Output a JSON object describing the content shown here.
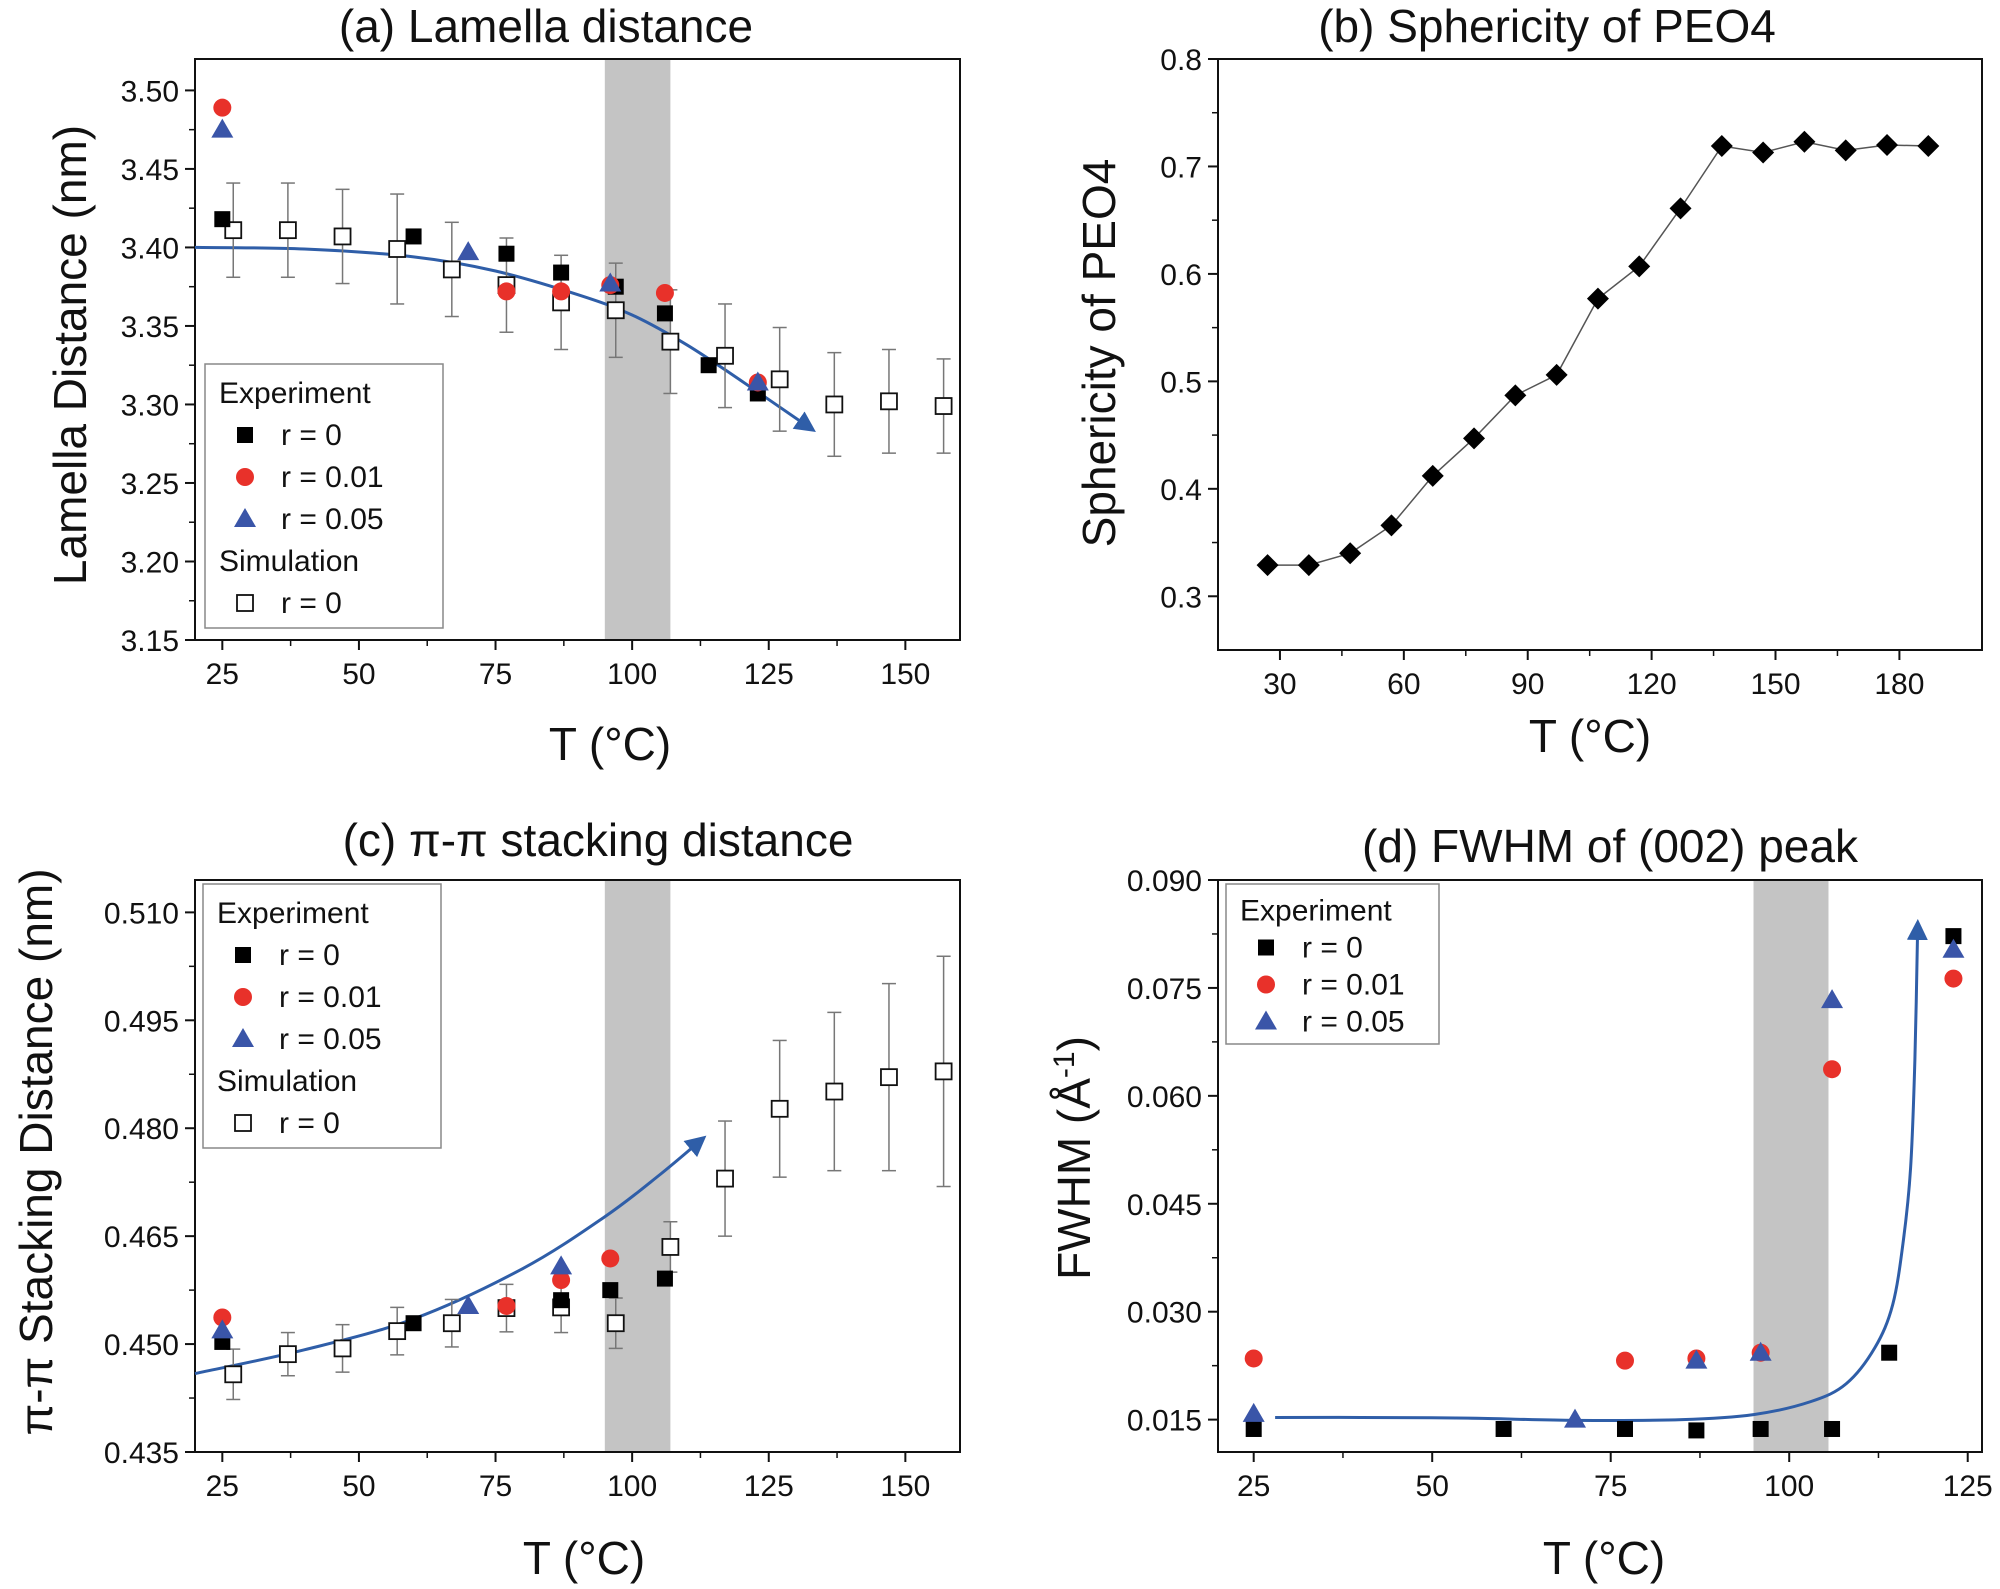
{
  "chart_data": [
    {
      "id": "a",
      "type": "scatter",
      "title": "(a) Lamella distance",
      "xlabel": "T (°C)",
      "ylabel": "Lamella Distance (nm)",
      "xlim": [
        20,
        160
      ],
      "ylim": [
        3.15,
        3.52
      ],
      "xticks": [
        25,
        50,
        75,
        100,
        125,
        150
      ],
      "yticks": [
        "3.15",
        "3.20",
        "3.25",
        "3.30",
        "3.35",
        "3.40",
        "3.45",
        "3.50"
      ],
      "shaded_range": [
        95,
        107
      ],
      "legend": {
        "position": "lower-left",
        "groups": [
          {
            "heading": "Experiment",
            "entries": [
              "r = 0",
              "r = 0.01",
              "r = 0.05"
            ]
          },
          {
            "heading": "Simulation",
            "entries": [
              "r = 0"
            ]
          }
        ]
      },
      "series": [
        {
          "name": "r = 0",
          "group": "Experiment",
          "marker": "square",
          "color": "#000000",
          "x": [
            25,
            60,
            77,
            87,
            97,
            106,
            114,
            123
          ],
          "y": [
            3.418,
            3.407,
            3.396,
            3.384,
            3.375,
            3.358,
            3.325,
            3.307
          ]
        },
        {
          "name": "r = 0.01",
          "group": "Experiment",
          "marker": "circle",
          "color": "#e8312a",
          "x": [
            25,
            77,
            87,
            96,
            106,
            123
          ],
          "y": [
            3.489,
            3.372,
            3.372,
            3.376,
            3.371,
            3.314
          ]
        },
        {
          "name": "r = 0.05",
          "group": "Experiment",
          "marker": "triangle",
          "color": "#3a55a8",
          "x": [
            25,
            70,
            96,
            123
          ],
          "y": [
            3.475,
            3.397,
            3.377,
            3.314
          ]
        },
        {
          "name": "r = 0",
          "group": "Simulation",
          "marker": "open-square",
          "color": "#111111",
          "x": [
            27,
            37,
            47,
            57,
            67,
            77,
            87,
            97,
            107,
            117,
            127,
            137,
            147,
            157
          ],
          "y": [
            3.411,
            3.411,
            3.407,
            3.399,
            3.386,
            3.376,
            3.365,
            3.36,
            3.34,
            3.331,
            3.316,
            3.3,
            3.302,
            3.299
          ],
          "err": [
            0.03,
            0.03,
            0.03,
            0.035,
            0.03,
            0.03,
            0.03,
            0.03,
            0.033,
            0.033,
            0.033,
            0.033,
            0.033,
            0.03
          ]
        }
      ],
      "arrow_curve": {
        "color": "#2f5ea8",
        "x": [
          20,
          40,
          60,
          75,
          90,
          100,
          110,
          120,
          133
        ],
        "y": [
          3.4,
          3.399,
          3.394,
          3.385,
          3.37,
          3.357,
          3.338,
          3.315,
          3.284
        ]
      }
    },
    {
      "id": "b",
      "type": "line",
      "title": "(b) Sphericity of PEO4",
      "xlabel": "T (°C)",
      "ylabel": "Sphericity of PEO4",
      "xlim": [
        15,
        200
      ],
      "ylim": [
        0.25,
        0.8
      ],
      "xticks": [
        30,
        60,
        90,
        120,
        150,
        180
      ],
      "yticks": [
        "0.3",
        "0.4",
        "0.5",
        "0.6",
        "0.7",
        "0.8"
      ],
      "series": [
        {
          "name": "",
          "marker": "diamond",
          "color": "#000000",
          "x": [
            27,
            37,
            47,
            57,
            67,
            77,
            87,
            97,
            107,
            117,
            127,
            137,
            147,
            157,
            167,
            177,
            187
          ],
          "y": [
            0.329,
            0.329,
            0.34,
            0.366,
            0.412,
            0.447,
            0.487,
            0.506,
            0.577,
            0.607,
            0.661,
            0.719,
            0.713,
            0.723,
            0.715,
            0.72,
            0.719
          ]
        }
      ]
    },
    {
      "id": "c",
      "type": "scatter",
      "title": "(c) π-π  stacking distance",
      "xlabel": "T (°C)",
      "ylabel": "π-π Stacking Distance (nm)",
      "xlim": [
        20,
        160
      ],
      "ylim": [
        0.435,
        0.5145
      ],
      "xticks": [
        25,
        50,
        75,
        100,
        125,
        150
      ],
      "yticks": [
        "0.435",
        "0.450",
        "0.465",
        "0.480",
        "0.495",
        "0.510"
      ],
      "shaded_range": [
        95,
        107
      ],
      "legend": {
        "position": "top-left",
        "groups": [
          {
            "heading": "Experiment",
            "entries": [
              "r = 0",
              "r = 0.01",
              "r = 0.05"
            ]
          },
          {
            "heading": "Simulation",
            "entries": [
              "r = 0"
            ]
          }
        ]
      },
      "series": [
        {
          "name": "r = 0",
          "group": "Experiment",
          "marker": "square",
          "color": "#000000",
          "x": [
            25,
            60,
            87,
            96,
            106
          ],
          "y": [
            0.4503,
            0.4529,
            0.4561,
            0.4575,
            0.4591
          ]
        },
        {
          "name": "r = 0.01",
          "group": "Experiment",
          "marker": "circle",
          "color": "#e8312a",
          "x": [
            25,
            77,
            87,
            96
          ],
          "y": [
            0.4537,
            0.4553,
            0.4589,
            0.4619
          ]
        },
        {
          "name": "r = 0.05",
          "group": "Experiment",
          "marker": "triangle",
          "color": "#3a55a8",
          "x": [
            25,
            70,
            87
          ],
          "y": [
            0.4519,
            0.4553,
            0.4608
          ]
        },
        {
          "name": "r = 0",
          "group": "Simulation",
          "marker": "open-square",
          "color": "#111111",
          "x": [
            27,
            37,
            47,
            57,
            67,
            77,
            87,
            97,
            107,
            117,
            127,
            137,
            147,
            157
          ],
          "y": [
            0.4458,
            0.4486,
            0.4494,
            0.4518,
            0.4529,
            0.455,
            0.4551,
            0.4529,
            0.4635,
            0.473,
            0.4827,
            0.4851,
            0.4871,
            0.4879
          ],
          "err": [
            0.0035,
            0.003,
            0.0033,
            0.0033,
            0.0033,
            0.0033,
            0.0035,
            0.0035,
            0.0035,
            0.008,
            0.0095,
            0.011,
            0.013,
            0.016
          ]
        }
      ],
      "arrow_curve": {
        "color": "#2f5ea8",
        "x": [
          20,
          40,
          60,
          80,
          95,
          105,
          113
        ],
        "y": [
          0.4459,
          0.4492,
          0.4535,
          0.4605,
          0.4677,
          0.4735,
          0.4786
        ]
      }
    },
    {
      "id": "d",
      "type": "scatter",
      "title": "(d) FWHM of (002) peak",
      "xlabel": "T (°C)",
      "ylabel": "FWHM (Å-1)",
      "ylabel_main": "FWHM (Å",
      "ylabel_sup": "-1",
      "ylabel_tail": ")",
      "xlim": [
        20,
        127
      ],
      "ylim": [
        0.0105,
        0.09
      ],
      "xticks": [
        25,
        50,
        75,
        100,
        125
      ],
      "yticks": [
        "0.015",
        "0.030",
        "0.045",
        "0.060",
        "0.075",
        "0.090"
      ],
      "shaded_range": [
        95,
        105.5
      ],
      "legend": {
        "position": "top-left",
        "groups": [
          {
            "heading": "Experiment",
            "entries": [
              "r = 0",
              "r = 0.01",
              "r = 0.05"
            ]
          }
        ]
      },
      "series": [
        {
          "name": "r = 0",
          "group": "Experiment",
          "marker": "square",
          "color": "#000000",
          "x": [
            25,
            60,
            77,
            87,
            96,
            106,
            114,
            123
          ],
          "y": [
            0.0137,
            0.0137,
            0.0137,
            0.0135,
            0.0137,
            0.0137,
            0.0243,
            0.0822
          ]
        },
        {
          "name": "r = 0.01",
          "group": "Experiment",
          "marker": "circle",
          "color": "#e8312a",
          "x": [
            25,
            77,
            87,
            96,
            106,
            123
          ],
          "y": [
            0.0235,
            0.0232,
            0.0235,
            0.0243,
            0.0637,
            0.0763
          ]
        },
        {
          "name": "r = 0.05",
          "group": "Experiment",
          "marker": "triangle",
          "color": "#3a55a8",
          "x": [
            25,
            70,
            87,
            96,
            106,
            123
          ],
          "y": [
            0.0158,
            0.015,
            0.0232,
            0.0243,
            0.0733,
            0.0803
          ]
        }
      ],
      "arrow_curve": {
        "color": "#2f5ea8",
        "x": [
          28,
          40,
          55,
          70,
          85,
          95,
          103,
          108,
          112,
          114.5,
          116,
          117,
          117.6,
          118
        ],
        "y": [
          0.0153,
          0.0153,
          0.0152,
          0.0149,
          0.015,
          0.0157,
          0.0175,
          0.02,
          0.025,
          0.031,
          0.04,
          0.05,
          0.065,
          0.084
        ]
      }
    }
  ]
}
